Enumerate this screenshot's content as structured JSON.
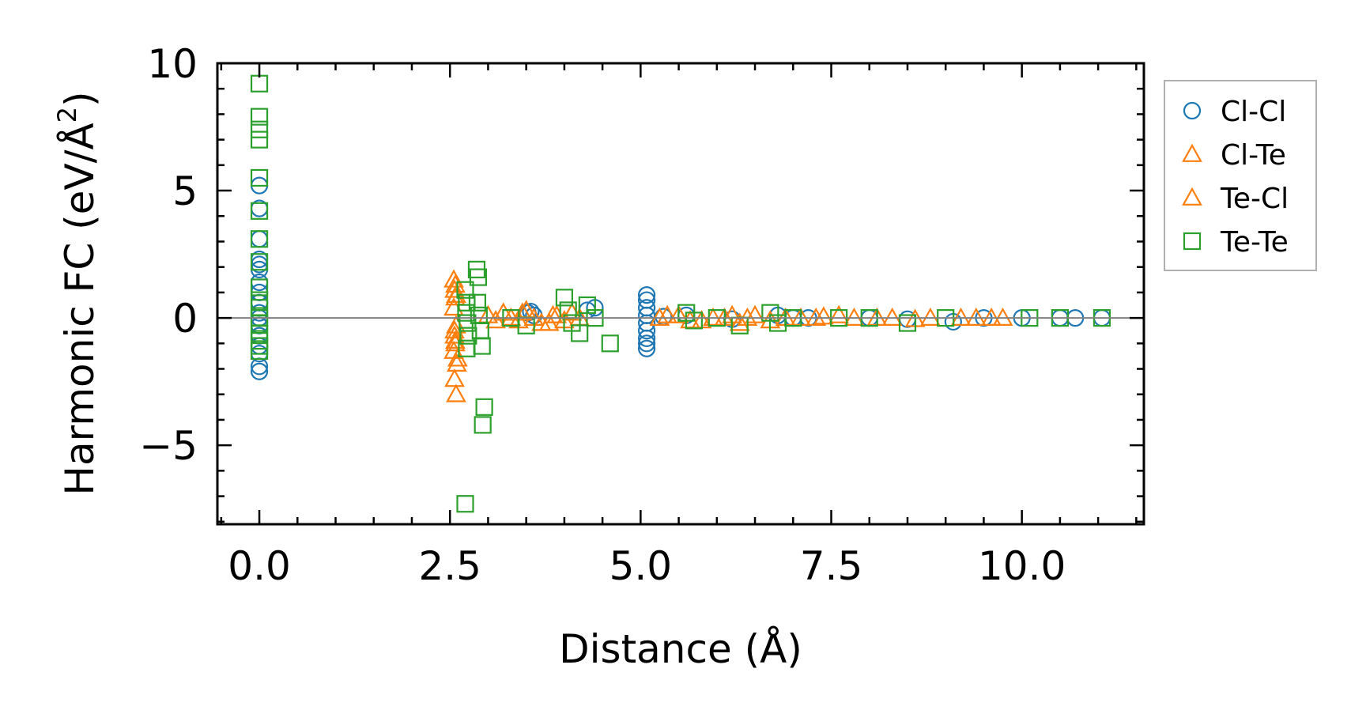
{
  "chart_data": {
    "type": "scatter",
    "title": "",
    "xlabel": "Distance (Å)",
    "ylabel": "Harmonic FC (eV/Å²)",
    "ylabel_base": "Harmonic FC (eV/Å",
    "ylabel_sup": "2",
    "ylabel_close": ")",
    "xlim": [
      -0.55,
      11.6
    ],
    "ylim": [
      -8.1,
      10.0
    ],
    "xticks": [
      0.0,
      2.5,
      5.0,
      7.5,
      10.0
    ],
    "xtick_labels": [
      "0.0",
      "2.5",
      "5.0",
      "7.5",
      "10.0"
    ],
    "yticks": [
      -5,
      0,
      5,
      10
    ],
    "ytick_labels": [
      "−5",
      "0",
      "5",
      "10"
    ],
    "grid": false,
    "zero_line": true,
    "legend_position": "outside-right",
    "series": [
      {
        "name": "Cl-Cl",
        "marker": "circle",
        "color": "#1f77b4",
        "x": [
          0,
          0,
          0,
          0,
          0,
          0,
          0,
          0,
          0,
          0,
          0,
          0,
          0,
          0,
          0,
          0,
          0,
          3.52,
          3.56,
          3.6,
          4.3,
          4.4,
          5.08,
          5.08,
          5.08,
          5.08,
          5.08,
          5.08,
          5.08,
          5.08,
          5.08,
          5.3,
          5.6,
          6.2,
          6.8,
          7.0,
          7.2,
          8.0,
          8.5,
          9.1,
          9.5,
          10.0,
          10.5,
          10.7,
          11.05
        ],
        "y": [
          5.2,
          4.3,
          3.1,
          2.3,
          2.1,
          1.9,
          1.4,
          1.0,
          0.6,
          0.2,
          0.0,
          -0.3,
          -0.7,
          -1.1,
          -1.4,
          -1.9,
          -2.1,
          0.2,
          0.25,
          0.1,
          0.3,
          0.4,
          0.9,
          0.7,
          0.4,
          0.1,
          -0.2,
          -0.5,
          -0.8,
          -1.0,
          -1.2,
          0.05,
          0.1,
          -0.05,
          0.1,
          0.0,
          0.0,
          0.0,
          -0.05,
          -0.15,
          0.0,
          0.0,
          0.0,
          0.0,
          0.0
        ]
      },
      {
        "name": "Cl-Te",
        "marker": "triangle",
        "color": "#ff7f0e",
        "x": [
          2.55,
          2.56,
          2.57,
          2.55,
          2.58,
          2.56,
          2.57,
          2.55,
          2.56,
          2.58,
          3.0,
          3.2,
          3.4,
          3.5,
          3.6,
          3.8,
          3.9,
          4.1,
          5.25,
          5.5,
          5.8,
          6.1,
          6.3,
          6.5,
          6.9,
          7.3,
          7.6,
          8.1,
          8.6,
          9.2,
          9.6
        ],
        "y": [
          1.5,
          1.1,
          0.8,
          0.4,
          -0.3,
          -0.7,
          -1.0,
          -1.3,
          -2.4,
          -3.0,
          0.1,
          0.2,
          -0.1,
          0.3,
          0.0,
          -0.2,
          0.1,
          0.2,
          0.0,
          0.1,
          -0.1,
          0.0,
          -0.2,
          0.1,
          0.0,
          0.0,
          0.1,
          0.0,
          -0.05,
          0.0,
          0.0
        ]
      },
      {
        "name": "Te-Cl",
        "marker": "triangle",
        "color": "#ff7f0e",
        "x": [
          2.57,
          2.58,
          2.56,
          2.57,
          2.6,
          2.59,
          3.1,
          3.3,
          3.45,
          3.7,
          3.85,
          4.0,
          4.2,
          5.35,
          5.65,
          5.95,
          6.2,
          6.4,
          6.7,
          7.1,
          7.4,
          7.8,
          8.3,
          8.8,
          9.4,
          9.75
        ],
        "y": [
          1.3,
          0.9,
          -0.5,
          -0.9,
          -1.6,
          -1.8,
          -0.1,
          0.0,
          0.2,
          -0.2,
          0.1,
          -0.1,
          0.0,
          0.1,
          -0.1,
          0.0,
          0.1,
          0.0,
          -0.1,
          0.0,
          0.05,
          0.0,
          0.0,
          0.0,
          0.0,
          0.0
        ]
      },
      {
        "name": "Te-Te",
        "marker": "square",
        "color": "#2ca02c",
        "x": [
          0,
          0,
          0,
          0,
          0,
          0,
          0,
          0,
          0,
          0,
          0,
          0,
          0,
          0,
          0,
          0,
          0,
          2.7,
          2.72,
          2.71,
          2.73,
          2.74,
          2.72,
          2.7,
          2.85,
          2.87,
          2.86,
          2.88,
          2.9,
          2.92,
          2.95,
          2.93,
          3.3,
          3.5,
          4.0,
          4.05,
          4.1,
          4.2,
          4.3,
          4.4,
          4.6,
          5.6,
          5.7,
          6.0,
          6.3,
          6.7,
          6.8,
          7.0,
          7.6,
          8.0,
          8.5,
          9.0,
          10.1,
          10.5,
          11.05
        ],
        "y": [
          9.2,
          7.9,
          7.4,
          7.0,
          5.5,
          4.2,
          3.1,
          2.2,
          1.2,
          0.7,
          0.4,
          0.0,
          -0.2,
          -0.6,
          -0.9,
          -1.1,
          -1.3,
          1.1,
          0.6,
          0.2,
          -0.2,
          -0.7,
          -1.2,
          -7.3,
          1.9,
          1.6,
          0.6,
          0.1,
          -0.5,
          -1.1,
          -3.5,
          -4.2,
          0.0,
          -0.3,
          0.8,
          0.3,
          -0.2,
          -0.6,
          0.5,
          0.0,
          -1.0,
          0.2,
          -0.1,
          0.0,
          -0.3,
          0.2,
          -0.2,
          0.0,
          0.0,
          0.0,
          -0.2,
          0.0,
          0.0,
          0.0,
          0.0
        ]
      }
    ]
  }
}
